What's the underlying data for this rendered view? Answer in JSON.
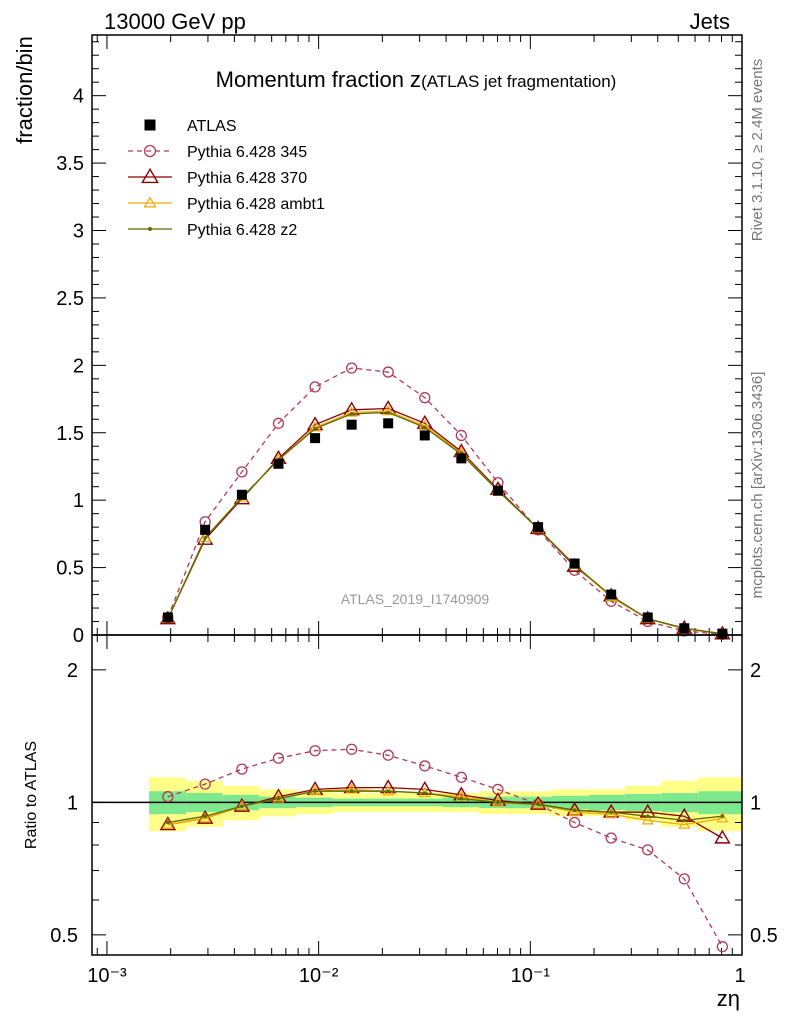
{
  "header": {
    "left": "13000 GeV pp",
    "right": "Jets"
  },
  "title": {
    "main": "Momentum fraction z",
    "sub": "(ATLAS jet fragmentation)"
  },
  "side_labels": {
    "rivet": "Rivet 3.1.10, ≥ 2.4M events",
    "mcplots": "mcplots.cern.ch [arXiv:1306.3436]"
  },
  "watermark": "ATLAS_2019_I1740909",
  "colors": {
    "atlas": "#000000",
    "p345": "#b03a5c",
    "p370": "#8b0000",
    "ambt1": "#f2a900",
    "z2": "#5f6b00",
    "band_inner": "#7ee88f",
    "band_outer": "#ffff88"
  },
  "chart_data": [
    {
      "type": "line",
      "xlabel": "zη",
      "ylabel": "fraction/bin",
      "xscale": "log",
      "xlim": [
        0.00085,
        1.0
      ],
      "ylim": [
        0,
        4.45
      ],
      "x_tick_labels": [
        "10⁻³",
        "10⁻²",
        "10⁻¹",
        "1"
      ],
      "y_ticks": [
        0,
        0.5,
        1,
        1.5,
        2,
        2.5,
        3,
        3.5,
        4
      ],
      "y_tick_labels": [
        "0",
        "0.5",
        "1",
        "1.5",
        "2",
        "2.5",
        "3",
        "3.5",
        "4"
      ],
      "legend_position": "top-left",
      "x": [
        0.00194,
        0.00291,
        0.00434,
        0.00646,
        0.00962,
        0.01432,
        0.02131,
        0.03173,
        0.04723,
        0.07031,
        0.10876,
        0.16188,
        0.24096,
        0.35867,
        0.53389,
        0.80768
      ],
      "series": [
        {
          "name": "ATLAS",
          "style": "data",
          "values": [
            0.13,
            0.78,
            1.04,
            1.27,
            1.46,
            1.56,
            1.57,
            1.48,
            1.31,
            1.07,
            0.8,
            0.53,
            0.3,
            0.13,
            0.05,
            0.01
          ]
        },
        {
          "name": "Pythia 6.428 345",
          "style": "circle-dashed",
          "values": [
            0.13,
            0.84,
            1.21,
            1.57,
            1.84,
            1.98,
            1.95,
            1.76,
            1.48,
            1.13,
            0.78,
            0.48,
            0.25,
            0.1,
            0.03,
            0.005
          ]
        },
        {
          "name": "Pythia 6.428 370",
          "style": "triangle",
          "values": [
            0.12,
            0.71,
            1.01,
            1.31,
            1.56,
            1.67,
            1.68,
            1.57,
            1.36,
            1.08,
            0.79,
            0.51,
            0.29,
            0.12,
            0.05,
            0.008
          ]
        },
        {
          "name": "Pythia 6.428 ambt1",
          "style": "triangle-small",
          "values": [
            0.12,
            0.72,
            1.02,
            1.3,
            1.54,
            1.65,
            1.66,
            1.55,
            1.35,
            1.07,
            0.79,
            0.52,
            0.28,
            0.12,
            0.045,
            0.009
          ]
        },
        {
          "name": "Pythia 6.428 z2",
          "style": "dot",
          "values": [
            0.12,
            0.72,
            1.02,
            1.3,
            1.53,
            1.64,
            1.65,
            1.54,
            1.34,
            1.07,
            0.79,
            0.52,
            0.29,
            0.12,
            0.05,
            0.009
          ]
        }
      ]
    },
    {
      "type": "line",
      "xlabel": "zη",
      "ylabel": "Ratio to ATLAS",
      "xscale": "log",
      "yscale": "log",
      "xlim": [
        0.00085,
        1.0
      ],
      "ylim": [
        0.45,
        2.4
      ],
      "y_ticks": [
        0.5,
        1,
        2
      ],
      "y_tick_labels": [
        "0.5",
        "1",
        "2"
      ],
      "x": [
        0.00194,
        0.00291,
        0.00434,
        0.00646,
        0.00962,
        0.01432,
        0.02131,
        0.03173,
        0.04723,
        0.07031,
        0.10876,
        0.16188,
        0.24096,
        0.35867,
        0.53389,
        0.80768
      ],
      "band_edges": [
        0.00158,
        0.00237,
        0.00353,
        0.00525,
        0.00782,
        0.01164,
        0.01733,
        0.02579,
        0.03839,
        0.05715,
        0.08507,
        0.12662,
        0.18849,
        0.28062,
        0.41774,
        0.62181,
        1.0
      ],
      "band_inner": [
        0.06,
        0.05,
        0.04,
        0.03,
        0.025,
        0.02,
        0.02,
        0.02,
        0.025,
        0.03,
        0.03,
        0.035,
        0.04,
        0.045,
        0.05,
        0.06
      ],
      "band_outer": [
        0.14,
        0.12,
        0.09,
        0.07,
        0.06,
        0.05,
        0.05,
        0.05,
        0.05,
        0.06,
        0.06,
        0.07,
        0.07,
        0.09,
        0.12,
        0.14
      ],
      "series": [
        {
          "name": "Pythia 6.428 345",
          "style": "circle-dashed",
          "values": [
            1.03,
            1.1,
            1.19,
            1.26,
            1.31,
            1.32,
            1.28,
            1.21,
            1.14,
            1.07,
            0.99,
            0.9,
            0.83,
            0.78,
            0.67,
            0.47
          ]
        },
        {
          "name": "Pythia 6.428 370",
          "style": "triangle",
          "values": [
            0.89,
            0.92,
            0.98,
            1.03,
            1.07,
            1.08,
            1.08,
            1.07,
            1.04,
            1.01,
            0.99,
            0.96,
            0.95,
            0.95,
            0.93,
            0.83
          ]
        },
        {
          "name": "Pythia 6.428 ambt1",
          "style": "triangle-small",
          "values": [
            0.89,
            0.92,
            0.98,
            1.02,
            1.06,
            1.07,
            1.06,
            1.05,
            1.03,
            1.0,
            0.99,
            0.95,
            0.94,
            0.91,
            0.89,
            0.92
          ]
        },
        {
          "name": "Pythia 6.428 z2",
          "style": "dot",
          "values": [
            0.9,
            0.93,
            0.98,
            1.02,
            1.06,
            1.06,
            1.06,
            1.05,
            1.02,
            1.0,
            0.99,
            0.96,
            0.95,
            0.93,
            0.91,
            0.93
          ]
        }
      ]
    }
  ]
}
